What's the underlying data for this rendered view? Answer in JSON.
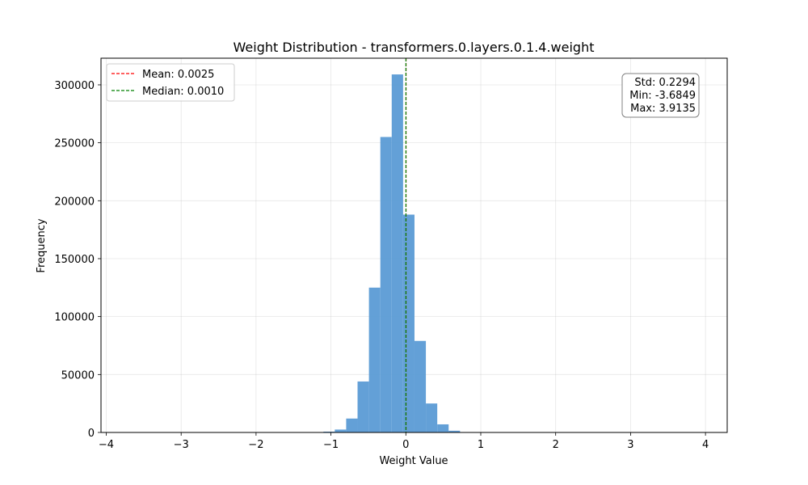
{
  "chart_data": {
    "type": "bar",
    "title": "Weight Distribution - transformers.0.layers.0.1.4.weight",
    "xlabel": "Weight Value",
    "ylabel": "Frequency",
    "xlim": [
      -4.07,
      4.29
    ],
    "ylim": [
      0,
      323000
    ],
    "xticks": [
      -4,
      -3,
      -2,
      -1,
      0,
      1,
      2,
      3,
      4
    ],
    "xtick_labels": [
      "−4",
      "−3",
      "−2",
      "−1",
      "0",
      "1",
      "2",
      "3",
      "4"
    ],
    "yticks": [
      0,
      50000,
      100000,
      150000,
      200000,
      250000,
      300000
    ],
    "ytick_labels": [
      "0",
      "50000",
      "100000",
      "150000",
      "200000",
      "250000",
      "300000"
    ],
    "grid": true,
    "bar_color": "#5b9bd5",
    "bins": {
      "start": -3.6849,
      "width": 0.152,
      "counts": [
        1,
        1,
        1,
        1,
        1,
        1,
        1,
        1,
        1,
        1,
        1,
        1,
        1,
        2,
        5,
        20,
        200,
        700,
        2500,
        12000,
        44000,
        125000,
        255000,
        309000,
        188000,
        79000,
        25000,
        7000,
        1500,
        300,
        60,
        15,
        6,
        3,
        2,
        1,
        1,
        1,
        1,
        1,
        1,
        1,
        1,
        1,
        1,
        1,
        1,
        1,
        1,
        1
      ]
    },
    "lines": [
      {
        "label": "Mean: 0.0025",
        "x": 0.0025,
        "color": "#ff0000",
        "style": "dashed"
      },
      {
        "label": "Median: 0.0010",
        "x": 0.001,
        "color": "#008000",
        "style": "dashed"
      }
    ],
    "legend": {
      "position": "top-left",
      "entries": [
        "Mean: 0.0025",
        "Median: 0.0010"
      ]
    },
    "stats_box": {
      "position": "top-right",
      "lines": [
        "Std: 0.2294",
        "Min: -3.6849",
        "Max: 3.9135"
      ]
    }
  }
}
